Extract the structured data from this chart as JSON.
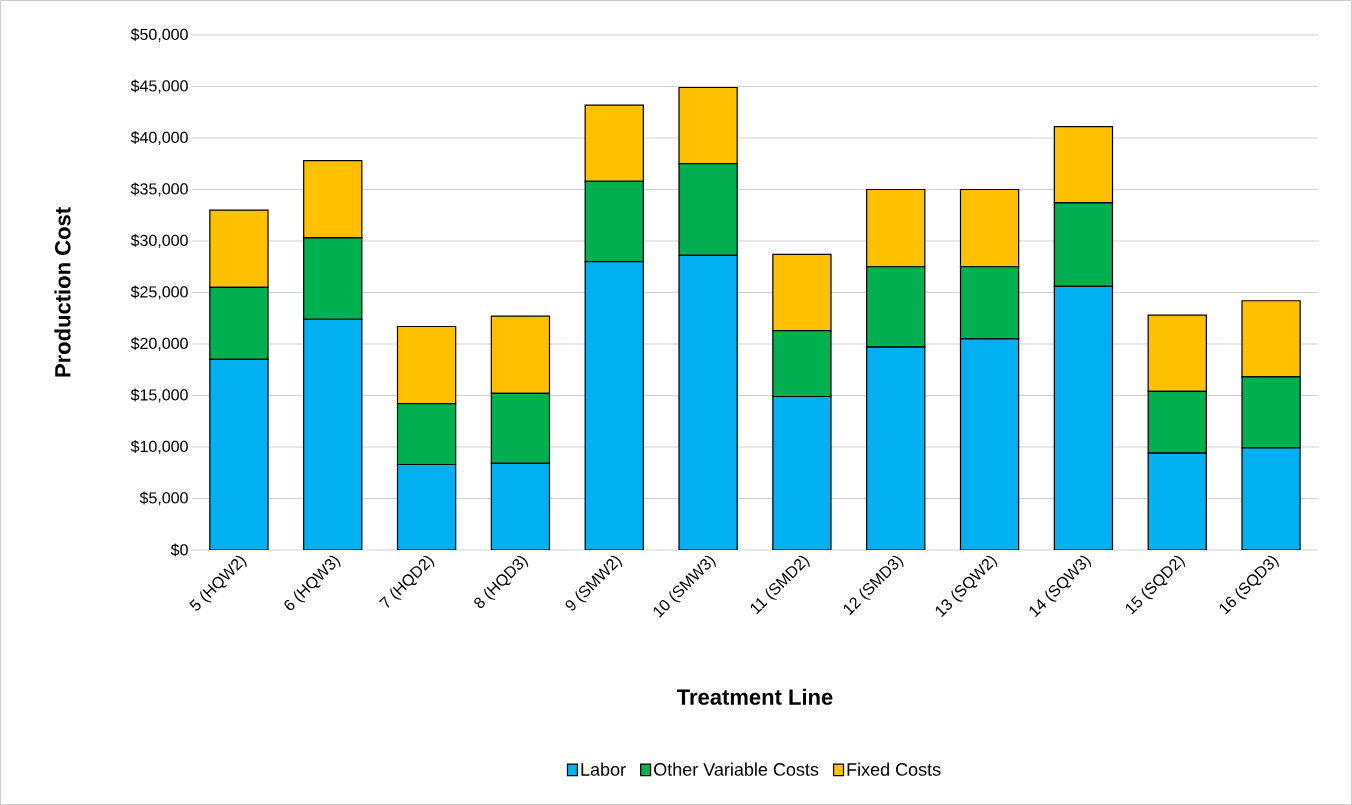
{
  "chart_data": {
    "type": "bar",
    "stacked": true,
    "xlabel": "Treatment Line",
    "ylabel": "Production Cost",
    "categories": [
      "5 (HQW2)",
      "6 (HQW3)",
      "7 (HQD2)",
      "8 (HQD3)",
      "9 (SMW2)",
      "10 (SMW3)",
      "11 (SMD2)",
      "12 (SMD3)",
      "13 (SQW2)",
      "14 (SQW3)",
      "15 (SQD2)",
      "16 (SQD3)"
    ],
    "series": [
      {
        "name": "Labor",
        "color": "#00b0f0",
        "values": [
          18500,
          22400,
          8300,
          8400,
          28000,
          28600,
          14900,
          19700,
          20500,
          25600,
          9400,
          9900
        ]
      },
      {
        "name": "Other Variable Costs",
        "color": "#00b050",
        "values": [
          7000,
          7900,
          5900,
          6800,
          7800,
          8900,
          6400,
          7800,
          7000,
          8100,
          6000,
          6900
        ]
      },
      {
        "name": "Fixed Costs",
        "color": "#ffc000",
        "values": [
          7500,
          7500,
          7500,
          7500,
          7400,
          7400,
          7400,
          7500,
          7500,
          7400,
          7400,
          7400
        ]
      }
    ],
    "ylim": [
      0,
      50000
    ],
    "yticks": [
      {
        "value": 0,
        "label": "$0"
      },
      {
        "value": 5000,
        "label": "$5,000"
      },
      {
        "value": 10000,
        "label": "$10,000"
      },
      {
        "value": 15000,
        "label": "$15,000"
      },
      {
        "value": 20000,
        "label": "$20,000"
      },
      {
        "value": 25000,
        "label": "$25,000"
      },
      {
        "value": 30000,
        "label": "$30,000"
      },
      {
        "value": 35000,
        "label": "$35,000"
      },
      {
        "value": 40000,
        "label": "$40,000"
      },
      {
        "value": 45000,
        "label": "$45,000"
      },
      {
        "value": 50000,
        "label": "$50,000"
      }
    ],
    "grid": "y",
    "legend": "bottom"
  }
}
